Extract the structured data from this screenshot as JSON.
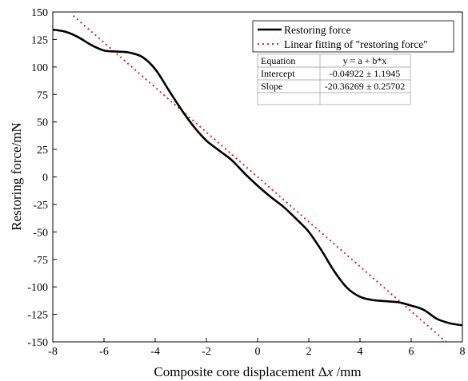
{
  "chart_data": {
    "type": "line",
    "xlabel_prefix": "Composite core displacement Δ",
    "xlabel_var": "x",
    "xlabel_suffix": " /mm",
    "ylabel": "Restoring force/mN",
    "xlim": [
      -8,
      8
    ],
    "ylim": [
      -150,
      150
    ],
    "xticks": [
      -8,
      -6,
      -4,
      -2,
      0,
      2,
      4,
      6,
      8
    ],
    "yticks": [
      150,
      125,
      100,
      75,
      50,
      25,
      0,
      -25,
      -50,
      -75,
      -100,
      -125,
      -150
    ],
    "grid": false,
    "legend_position": "top-right",
    "series": [
      {
        "name": "Restoring force",
        "style": "solid",
        "color": "#000000",
        "x": [
          -8,
          -7.5,
          -7,
          -6.5,
          -6,
          -5.5,
          -5,
          -4.5,
          -4,
          -3.5,
          -3,
          -2.5,
          -2,
          -1.5,
          -1,
          -0.5,
          0,
          0.5,
          1,
          1.5,
          2,
          2.5,
          3,
          3.5,
          4,
          4.5,
          5,
          5.5,
          6,
          6.5,
          7,
          7.5,
          8
        ],
        "y": [
          134,
          132,
          127,
          120,
          115,
          114,
          113,
          109,
          98,
          80,
          62,
          46,
          33,
          24,
          15,
          3,
          -8,
          -18,
          -27,
          -38,
          -50,
          -67,
          -86,
          -101,
          -109,
          -112,
          -113,
          -114,
          -117,
          -121,
          -129,
          -133,
          -135
        ]
      },
      {
        "name": "Linear fitting of \"restoring force\"",
        "style": "dotted",
        "color": "#e8201c",
        "x": [
          -7.2,
          7.6
        ],
        "y": [
          146.6,
          -154.8
        ]
      }
    ],
    "fit_table": {
      "rows": [
        [
          "Equation",
          "y = a + b*x"
        ],
        [
          "Intercept",
          "-0.04922 ± 1.1945"
        ],
        [
          "Slope",
          "-20.36269 ± 0.25702"
        ]
      ]
    }
  }
}
